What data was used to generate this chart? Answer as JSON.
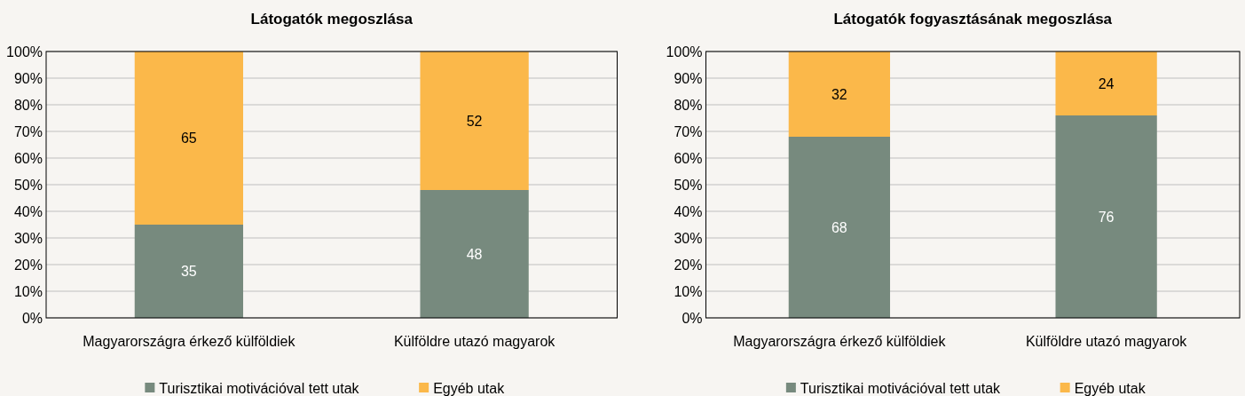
{
  "chart_data": [
    {
      "type": "bar",
      "title": "Látogatók megoszlása",
      "categories": [
        "Magyarországra érkező külföldiek",
        "Külföldre utazó magyarok"
      ],
      "stacked": true,
      "data_labels": true,
      "grid": "y",
      "legend": "bottom",
      "ylim": [
        0,
        100
      ],
      "yticks": [
        {
          "value": 0,
          "label": "0%"
        },
        {
          "value": 10,
          "label": "10%"
        },
        {
          "value": 20,
          "label": "20%"
        },
        {
          "value": 30,
          "label": "30%"
        },
        {
          "value": 40,
          "label": "40%"
        },
        {
          "value": 50,
          "label": "50%"
        },
        {
          "value": 60,
          "label": "60%"
        },
        {
          "value": 70,
          "label": "70%"
        },
        {
          "value": 80,
          "label": "80%"
        },
        {
          "value": 90,
          "label": "90%"
        },
        {
          "value": 100,
          "label": "100%"
        }
      ],
      "series": [
        {
          "name": "Turisztikai motivációval tett utak",
          "color": "#778a7e",
          "values": [
            35,
            48
          ]
        },
        {
          "name": "Egyéb utak",
          "color": "#fbb84a",
          "values": [
            65,
            52
          ]
        }
      ]
    },
    {
      "type": "bar",
      "title": "Látogatók fogyasztásának megoszlása",
      "categories": [
        "Magyarországra érkező külföldiek",
        "Külföldre utazó magyarok"
      ],
      "stacked": true,
      "data_labels": true,
      "grid": "y",
      "legend": "bottom",
      "ylim": [
        0,
        100
      ],
      "yticks": [
        {
          "value": 0,
          "label": "0%"
        },
        {
          "value": 10,
          "label": "10%"
        },
        {
          "value": 20,
          "label": "20%"
        },
        {
          "value": 30,
          "label": "30%"
        },
        {
          "value": 40,
          "label": "40%"
        },
        {
          "value": 50,
          "label": "50%"
        },
        {
          "value": 60,
          "label": "60%"
        },
        {
          "value": 70,
          "label": "70%"
        },
        {
          "value": 80,
          "label": "80%"
        },
        {
          "value": 90,
          "label": "90%"
        },
        {
          "value": 100,
          "label": "100%"
        }
      ],
      "series": [
        {
          "name": "Turisztikai motivációval tett utak",
          "color": "#778a7e",
          "values": [
            68,
            76
          ]
        },
        {
          "name": "Egyéb utak",
          "color": "#fbb84a",
          "values": [
            32,
            24
          ]
        }
      ]
    }
  ]
}
